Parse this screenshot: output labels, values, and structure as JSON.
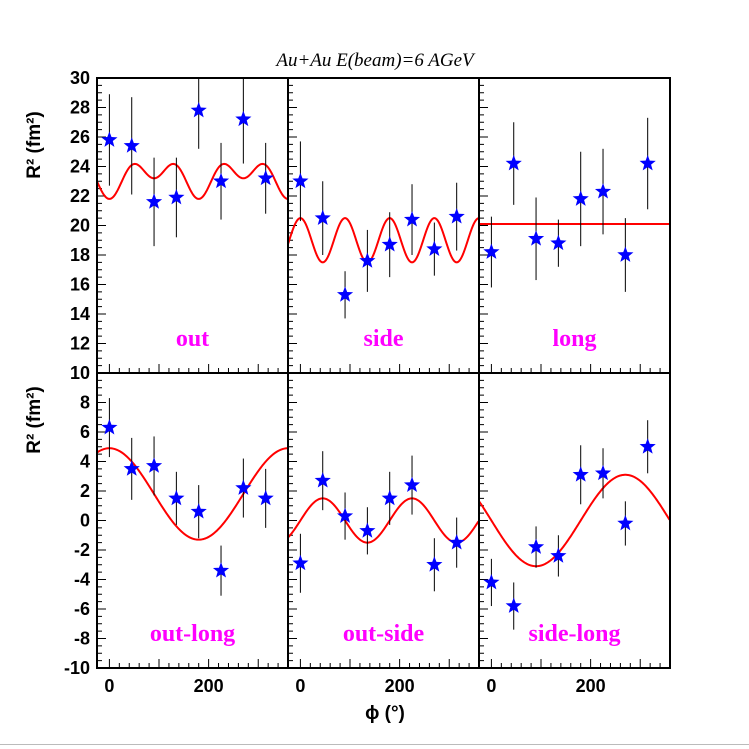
{
  "figure": {
    "title": "Au+Au E(beam)=6 AGeV",
    "ylabel_top": "R² (fm²)",
    "ylabel_bottom": "R² (fm²)",
    "xlabel": "ϕ (°)"
  },
  "colors": {
    "marker": "#0000ff",
    "fit": "#ff0000",
    "label": "#ff00ff",
    "errorbar": "#000000"
  },
  "chart_data": [
    {
      "type": "scatter",
      "label": "out",
      "x": [
        0,
        45,
        90,
        135,
        180,
        225,
        270,
        315
      ],
      "y": [
        25.8,
        25.4,
        21.6,
        21.9,
        27.8,
        23.0,
        27.2,
        23.2
      ],
      "yerr": [
        3.1,
        3.3,
        3.0,
        2.7,
        2.6,
        2.6,
        3.0,
        2.4
      ],
      "xlim": [
        -25,
        360
      ],
      "ylim": [
        10,
        30
      ],
      "yticks": [
        10,
        12,
        14,
        16,
        18,
        20,
        22,
        24,
        26,
        28,
        30
      ],
      "fit": {
        "c0": 23.3,
        "c2": -0.7,
        "s2": 0,
        "c4": -0.8,
        "s4": 0,
        "c1": 0,
        "s1": 0
      }
    },
    {
      "type": "scatter",
      "label": "side",
      "x": [
        0,
        45,
        90,
        135,
        180,
        225,
        270,
        315
      ],
      "y": [
        23.0,
        20.5,
        15.3,
        17.6,
        18.7,
        20.4,
        18.4,
        20.6
      ],
      "yerr": [
        2.7,
        2.5,
        1.6,
        2.1,
        2.2,
        2.4,
        1.8,
        2.3
      ],
      "xlim": [
        -25,
        360
      ],
      "ylim": [
        10,
        30
      ],
      "yticks": [
        10,
        12,
        14,
        16,
        18,
        20,
        22,
        24,
        26,
        28,
        30
      ],
      "fit": {
        "c0": 19.0,
        "c2": 0.0,
        "s2": 0,
        "c4": 1.5,
        "s4": 0,
        "c1": 0,
        "s1": 0
      }
    },
    {
      "type": "scatter",
      "label": "long",
      "x": [
        0,
        45,
        90,
        135,
        180,
        225,
        270,
        315
      ],
      "y": [
        18.2,
        24.2,
        19.1,
        18.8,
        21.8,
        22.3,
        18.0,
        24.2
      ],
      "yerr": [
        2.4,
        2.8,
        2.8,
        1.6,
        3.2,
        2.9,
        2.5,
        3.1
      ],
      "xlim": [
        -25,
        360
      ],
      "ylim": [
        10,
        30
      ],
      "yticks": [
        10,
        12,
        14,
        16,
        18,
        20,
        22,
        24,
        26,
        28,
        30
      ],
      "fit": {
        "c0": 20.1,
        "c2": 0,
        "s2": 0,
        "c4": 0,
        "s4": 0,
        "c1": 0,
        "s1": 0
      }
    },
    {
      "type": "scatter",
      "label": "out-long",
      "x": [
        0,
        45,
        90,
        135,
        180,
        225,
        270,
        315
      ],
      "y": [
        6.3,
        3.5,
        3.7,
        1.5,
        0.6,
        -3.4,
        2.2,
        1.5
      ],
      "yerr": [
        2.0,
        2.1,
        2.0,
        1.8,
        1.8,
        1.7,
        2.0,
        2.0
      ],
      "xlim": [
        -25,
        360
      ],
      "ylim": [
        -10,
        10
      ],
      "yticks": [
        -10,
        -8,
        -6,
        -4,
        -2,
        0,
        2,
        4,
        6,
        8
      ],
      "fit": {
        "c0": 1.8,
        "c2": 0,
        "s2": 0,
        "c4": 0,
        "s4": 0,
        "c1": 3.1,
        "s1": 0
      }
    },
    {
      "type": "scatter",
      "label": "out-side",
      "x": [
        0,
        45,
        90,
        135,
        180,
        225,
        270,
        315
      ],
      "y": [
        -2.9,
        2.7,
        0.3,
        -0.7,
        1.5,
        2.4,
        -3.0,
        -1.5
      ],
      "yerr": [
        2.0,
        2.0,
        1.6,
        1.6,
        1.8,
        2.0,
        1.8,
        1.7
      ],
      "xlim": [
        -25,
        360
      ],
      "ylim": [
        -10,
        10
      ],
      "yticks": [
        -10,
        -8,
        -6,
        -4,
        -2,
        0,
        2,
        4,
        6,
        8
      ],
      "fit": {
        "c0": 0.0,
        "c2": 0,
        "s2": 1.5,
        "c4": 0,
        "s4": 0,
        "c1": 0,
        "s1": 0
      }
    },
    {
      "type": "scatter",
      "label": "side-long",
      "x": [
        0,
        45,
        90,
        135,
        180,
        225,
        270,
        315
      ],
      "y": [
        -4.2,
        -5.8,
        -1.8,
        -2.4,
        3.1,
        3.2,
        -0.2,
        5.0
      ],
      "yerr": [
        1.6,
        1.6,
        1.4,
        1.4,
        2.0,
        1.7,
        1.5,
        1.8
      ],
      "xlim": [
        -25,
        360
      ],
      "ylim": [
        -10,
        10
      ],
      "yticks": [
        -10,
        -8,
        -6,
        -4,
        -2,
        0,
        2,
        4,
        6,
        8
      ],
      "fit": {
        "c0": 0.0,
        "c2": 0,
        "s2": 0,
        "c4": 0,
        "s4": 0,
        "c1": 0,
        "s1": -3.1
      }
    }
  ],
  "xticks": [
    0,
    200
  ],
  "xtick_labels": [
    "0",
    "200"
  ]
}
